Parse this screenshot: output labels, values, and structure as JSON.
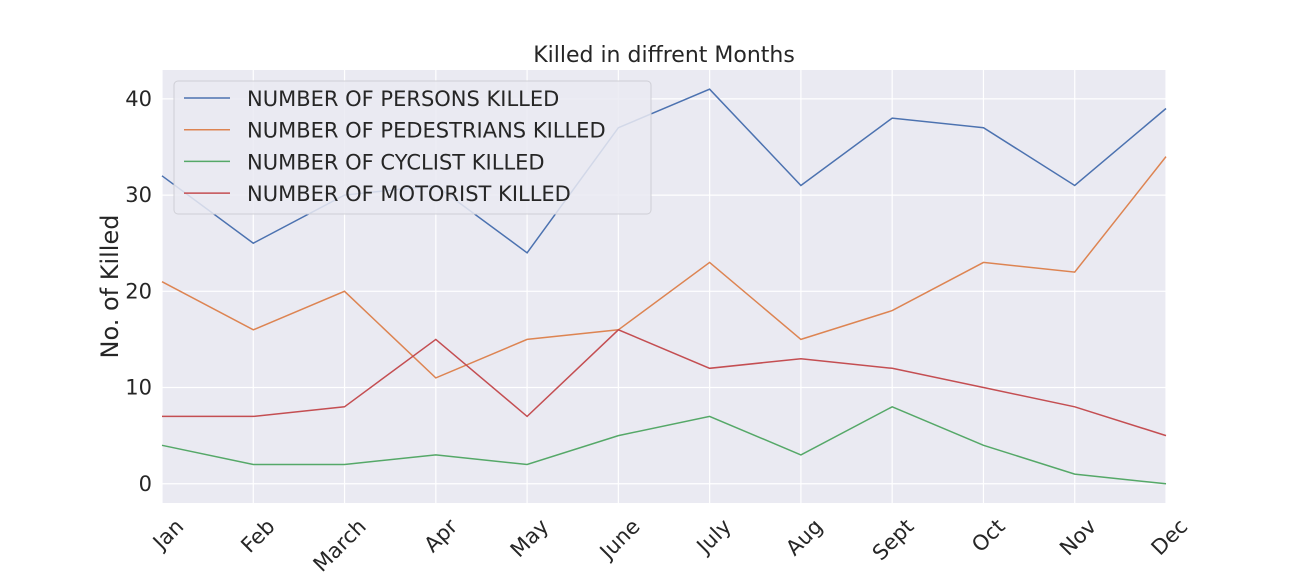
{
  "chart_data": {
    "type": "line",
    "title": "Killed in diffrent Months",
    "xlabel": "",
    "ylabel": "No. of Killed",
    "categories": [
      "Jan",
      "Feb",
      "March",
      "Apr",
      "May",
      "June",
      "July",
      "Aug",
      "Sept",
      "Oct",
      "Nov",
      "Dec"
    ],
    "ylim": [
      -2,
      43
    ],
    "yticks": [
      0,
      10,
      20,
      30,
      40
    ],
    "grid": true,
    "legend_position": "top-left",
    "series": [
      {
        "name": "NUMBER OF PERSONS KILLED",
        "color": "#4c72b0",
        "values": [
          32,
          25,
          30,
          31,
          24,
          37,
          41,
          31,
          38,
          37,
          31,
          39
        ]
      },
      {
        "name": "NUMBER OF PEDESTRIANS KILLED",
        "color": "#dd8452",
        "values": [
          21,
          16,
          20,
          11,
          15,
          16,
          23,
          15,
          18,
          23,
          22,
          34
        ]
      },
      {
        "name": "NUMBER OF CYCLIST KILLED",
        "color": "#55a868",
        "values": [
          4,
          2,
          2,
          3,
          2,
          5,
          7,
          3,
          8,
          4,
          1,
          0
        ]
      },
      {
        "name": "NUMBER OF MOTORIST KILLED",
        "color": "#c44e52",
        "values": [
          7,
          7,
          8,
          15,
          7,
          16,
          12,
          13,
          12,
          10,
          8,
          5
        ]
      }
    ],
    "plot_background": "#eaeaf2",
    "grid_color": "#ffffff"
  }
}
